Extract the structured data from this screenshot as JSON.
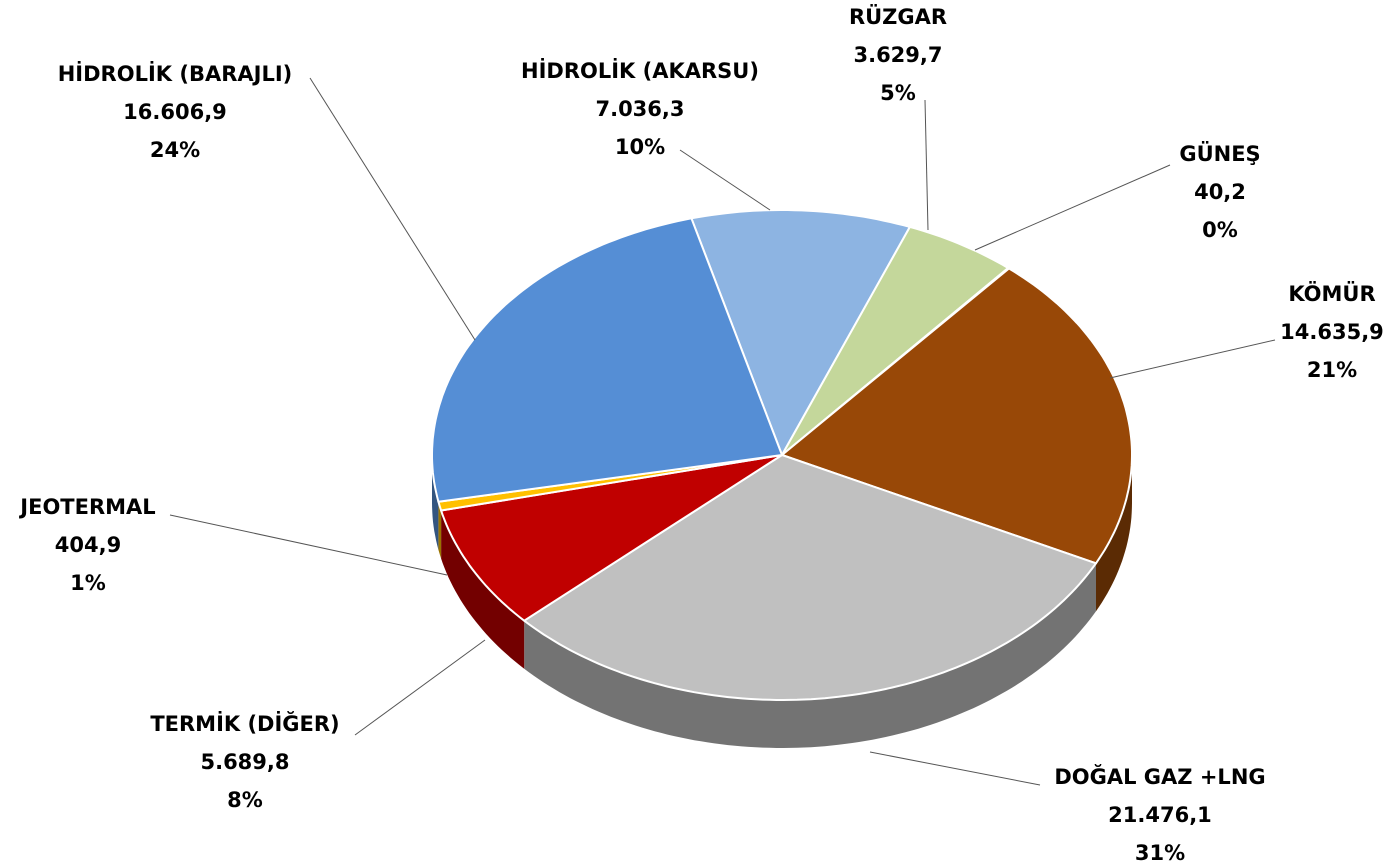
{
  "chart_data": {
    "type": "pie",
    "categories": [
      "HİDROLİK (AKARSU)",
      "RÜZGAR",
      "GÜNEŞ",
      "KÖMÜR",
      "DOĞAL GAZ +LNG",
      "TERMİK (DİĞER)",
      "JEOTERMAL",
      "HİDROLİK (BARAJLI)"
    ],
    "values": [
      7036.3,
      3629.7,
      40.2,
      14635.9,
      21476.1,
      5689.8,
      404.9,
      16606.9
    ],
    "value_labels": [
      "7.036,3",
      "3.629,7",
      "40,2",
      "14.635,9",
      "21.476,1",
      "5.689,8",
      "404,9",
      "16.606,9"
    ],
    "percent_labels": [
      "10%",
      "5%",
      "0%",
      "21%",
      "31%",
      "8%",
      "1%",
      "24%"
    ],
    "colors": [
      "#8db4e2",
      "#c4d79b",
      "#ffcc00",
      "#984807",
      "#c0c0c0",
      "#c00000",
      "#ffc000",
      "#558ed5"
    ]
  }
}
